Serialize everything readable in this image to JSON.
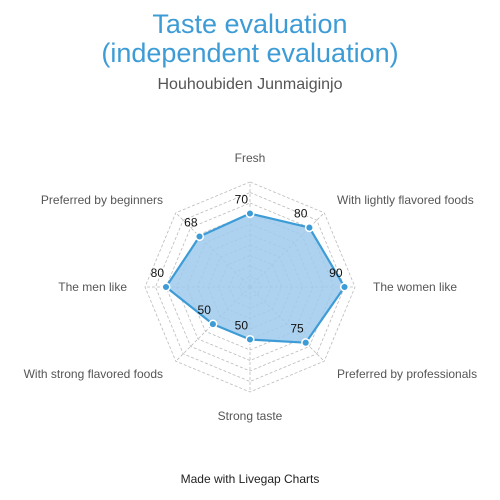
{
  "header": {
    "title_line1": "Taste evaluation",
    "title_line2": "(independent evaluation)",
    "subtitle": "Houhoubiden Junmaiginjo"
  },
  "footer": {
    "credit": "Made with Livegap Charts"
  },
  "colors": {
    "accent": "#3d9cd6",
    "fill": "#9fcaed",
    "grid": "#bbbbbb"
  },
  "chart_data": {
    "type": "radar",
    "axes": [
      "Fresh",
      "With lightly flavored foods",
      "The women like",
      "Preferred by professionals",
      "Strong taste",
      "With strong flavored foods",
      "The men like",
      "Preferred by beginners"
    ],
    "values": [
      70,
      80,
      90,
      75,
      50,
      50,
      80,
      68
    ],
    "rlim": [
      0,
      100
    ],
    "grid": true
  }
}
